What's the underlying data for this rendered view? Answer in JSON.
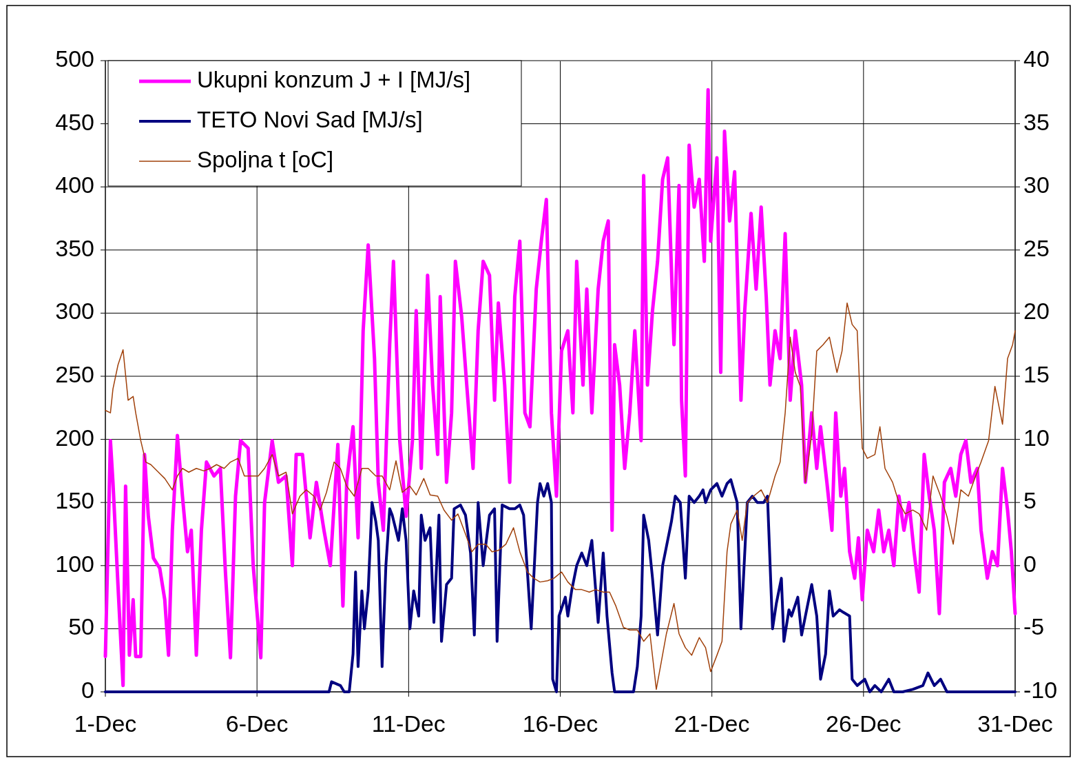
{
  "chart_data": {
    "type": "line",
    "xlim": [
      "--12-01",
      "--12-31"
    ],
    "xticks": [
      {
        "value": "--12-01",
        "label": "1-Dec"
      },
      {
        "value": "--12-06",
        "label": "6-Dec"
      },
      {
        "value": "--12-11",
        "label": "11-Dec"
      },
      {
        "value": "--12-16",
        "label": "16-Dec"
      },
      {
        "value": "--12-21",
        "label": "21-Dec"
      },
      {
        "value": "--12-26",
        "label": "26-Dec"
      },
      {
        "value": "--12-31",
        "label": "31-Dec"
      }
    ],
    "ylim": [
      0,
      500
    ],
    "yticks": [
      0,
      50,
      100,
      150,
      200,
      250,
      300,
      350,
      400,
      450,
      500
    ],
    "y2lim": [
      -10,
      40
    ],
    "y2ticks": [
      -10,
      -5,
      0,
      5,
      10,
      15,
      20,
      25,
      30,
      35,
      40
    ],
    "grid": true,
    "legend": "top left",
    "marker": "none",
    "line_style": "solid",
    "series": [
      {
        "name": "Ukupni konzum J + I [MJ/s]",
        "color": "#ff00ff",
        "x": [
          "--12-01T00:00",
          "--12-01T04:00",
          "--12-01T06:00",
          "--12-01T10:00",
          "--12-01T14:00",
          "--12-01T16:00",
          "--12-01T19:00",
          "--12-01T22:00",
          "--12-02T00:00",
          "--12-02T04:00",
          "--12-02T07:00",
          "--12-02T10:00",
          "--12-02T14:00",
          "--12-02T19:00",
          "--12-02T23:00",
          "--12-03T02:00",
          "--12-03T05:00",
          "--12-03T09:00",
          "--12-03T13:00",
          "--12-03T17:00",
          "--12-03T20:00",
          "--12-04T00:00",
          "--12-04T04:00",
          "--12-04T08:00",
          "--12-04T14:00",
          "--12-04T19:00",
          "--12-04T23:00",
          "--12-05T03:00",
          "--12-05T07:00",
          "--12-05T11:00",
          "--12-05T17:00",
          "--12-05T21:00",
          "--12-06T03:00",
          "--12-06T06:00",
          "--12-06T12:00",
          "--12-06T17:00",
          "--12-06T23:00",
          "--12-07T04:00",
          "--12-07T07:00",
          "--12-07T12:00",
          "--12-07T18:00",
          "--12-07T23:00",
          "--12-08T05:00",
          "--12-08T10:00",
          "--12-08T16:00",
          "--12-08T20:00",
          "--12-08T23:00",
          "--12-09T04:00",
          "--12-09T08:00",
          "--12-09T12:00",
          "--12-09T16:00",
          "--12-09T21:00",
          "--12-10T00:00",
          "--12-10T04:00",
          "--12-10T09:00",
          "--12-10T12:00",
          "--12-10T17:00",
          "--12-10T22:00",
          "--12-11T03:00",
          "--12-11T06:00",
          "--12-11T10:00",
          "--12-11T15:00",
          "--12-11T19:00",
          "--12-11T23:00",
          "--12-12T01:00",
          "--12-12T06:00",
          "--12-12T10:00",
          "--12-12T13:00",
          "--12-12T18:00",
          "--12-12T22:00",
          "--12-13T03:00",
          "--12-13T07:00",
          "--12-13T11:00",
          "--12-13T16:00",
          "--12-13T20:00",
          "--12-13T23:00",
          "--12-14T04:00",
          "--12-14T08:00",
          "--12-14T12:00",
          "--12-14T16:00",
          "--12-14T20:00",
          "--12-15T00:00",
          "--12-15T05:00",
          "--12-15T09:00",
          "--12-15T13:00",
          "--12-15T17:00",
          "--12-15T21:00",
          "--12-16T01:00",
          "--12-16T06:00",
          "--12-16T10:00",
          "--12-16T13:00",
          "--12-16T18:00",
          "--12-16T21:00",
          "--12-17T01:00",
          "--12-17T06:00",
          "--12-17T10:00",
          "--12-17T14:00",
          "--12-17T17:00",
          "--12-17T19:00",
          "--12-17T23:00",
          "--12-18T03:00",
          "--12-18T07:00",
          "--12-18T11:00",
          "--12-18T16:00",
          "--12-18T18:00",
          "--12-18T21:00",
          "--12-19T01:00",
          "--12-19T05:00",
          "--12-19T09:00",
          "--12-19T13:00",
          "--12-19T18:00",
          "--12-19T22:00",
          "--12-20T00:00",
          "--12-20T03:00",
          "--12-20T06:00",
          "--12-20T10:00",
          "--12-20T14:00",
          "--12-20T18:00",
          "--12-20T21:00",
          "--12-20T23:00",
          "--12-21T04:00",
          "--12-21T07:00",
          "--12-21T10:00",
          "--12-21T14:00",
          "--12-21T18:00",
          "--12-21T23:00",
          "--12-22T02:00",
          "--12-22T07:00",
          "--12-22T11:00",
          "--12-22T15:00",
          "--12-22T19:00",
          "--12-22T22:00",
          "--12-23T02:00",
          "--12-23T06:00",
          "--12-23T10:00",
          "--12-23T14:00",
          "--12-23T18:00",
          "--12-23T23:00",
          "--12-24T02:00",
          "--12-24T07:00",
          "--12-24T11:00",
          "--12-24T14:00",
          "--12-24T19:00",
          "--12-24T23:00",
          "--12-25T02:00",
          "--12-25T06:00",
          "--12-25T09:00",
          "--12-25T13:00",
          "--12-25T17:00",
          "--12-25T20:00",
          "--12-25T23:00",
          "--12-26T03:00",
          "--12-26T08:00",
          "--12-26T12:00",
          "--12-26T16:00",
          "--12-26T20:00",
          "--12-27T00:00",
          "--12-27T04:00",
          "--12-27T08:00",
          "--12-27T12:00",
          "--12-27T16:00",
          "--12-27T20:00",
          "--12-28T00:00",
          "--12-28T04:00",
          "--12-28T08:00",
          "--12-28T12:00",
          "--12-28T16:00",
          "--12-28T21:00",
          "--12-29T01:00",
          "--12-29T05:00",
          "--12-29T09:00",
          "--12-29T13:00",
          "--12-29T18:00",
          "--12-29T21:00",
          "--12-30T02:00",
          "--12-30T06:00",
          "--12-30T10:00",
          "--12-30T14:00",
          "--12-30T18:00",
          "--12-30T21:00",
          "--12-31T00:00"
        ],
        "values": [
          28,
          199,
          166,
          84,
          5,
          163,
          29,
          73,
          28,
          28,
          188,
          139,
          106,
          98,
          73,
          29,
          128,
          203,
          155,
          111,
          128,
          29,
          128,
          182,
          171,
          177,
          95,
          27,
          155,
          199,
          193,
          100,
          27,
          150,
          199,
          166,
          171,
          100,
          188,
          188,
          122,
          166,
          128,
          100,
          196,
          68,
          166,
          210,
          122,
          286,
          354,
          264,
          166,
          128,
          275,
          341,
          199,
          139,
          199,
          302,
          177,
          330,
          243,
          188,
          313,
          166,
          221,
          341,
          297,
          243,
          177,
          286,
          341,
          330,
          231,
          308,
          243,
          166,
          313,
          357,
          221,
          210,
          319,
          357,
          390,
          221,
          155,
          270,
          286,
          221,
          341,
          243,
          319,
          221,
          319,
          357,
          373,
          128,
          275,
          243,
          177,
          221,
          286,
          199,
          409,
          243,
          302,
          341,
          406,
          423,
          275,
          401,
          231,
          171,
          433,
          384,
          406,
          341,
          477,
          357,
          423,
          253,
          444,
          373,
          412,
          231,
          302,
          379,
          319,
          384,
          313,
          243,
          286,
          264,
          363,
          231,
          286,
          243,
          166,
          221,
          177,
          210,
          166,
          128,
          221,
          155,
          177,
          111,
          90,
          122,
          73,
          128,
          111,
          144,
          111,
          128,
          100,
          155,
          128,
          150,
          111,
          79,
          188,
          155,
          128,
          62,
          166,
          177,
          155,
          188,
          199,
          166,
          177,
          128,
          90,
          111,
          100,
          177,
          144,
          111,
          62
        ]
      },
      {
        "name": "TETO Novi Sad [MJ/s]",
        "color": "#000080",
        "x": [
          "--12-01T00:00",
          "--12-08T09:00",
          "--12-08T11:00",
          "--12-08T18:00",
          "--12-08T21:00",
          "--12-09T01:00",
          "--12-09T04:00",
          "--12-09T06:00",
          "--12-09T08:00",
          "--12-09T11:00",
          "--12-09T13:00",
          "--12-09T16:00",
          "--12-09T19:00",
          "--12-09T22:00",
          "--12-10T00:00",
          "--12-10T03:00",
          "--12-10T06:00",
          "--12-10T09:00",
          "--12-10T11:00",
          "--12-10T16:00",
          "--12-10T19:00",
          "--12-10T22:00",
          "--12-11T01:00",
          "--12-11T04:00",
          "--12-11T08:00",
          "--12-11T10:00",
          "--12-11T13:00",
          "--12-11T17:00",
          "--12-11T20:00",
          "--12-12T00:00",
          "--12-12T02:00",
          "--12-12T06:00",
          "--12-12T10:00",
          "--12-12T12:00",
          "--12-12T17:00",
          "--12-12T21:00",
          "--12-13T01:00",
          "--12-13T04:00",
          "--12-13T07:00",
          "--12-13T11:00",
          "--12-13T16:00",
          "--12-13T20:00",
          "--12-13T22:00",
          "--12-14T02:00",
          "--12-14T08:00",
          "--12-14T12:00",
          "--12-14T16:00",
          "--12-14T19:00",
          "--12-14T23:00",
          "--12-15T01:00",
          "--12-15T06:00",
          "--12-15T08:00",
          "--12-15T11:00",
          "--12-15T14:00",
          "--12-15T17:00",
          "--12-15T18:00",
          "--12-15T21:00",
          "--12-15T23:00",
          "--12-16T04:00",
          "--12-16T06:00",
          "--12-16T09:00",
          "--12-16T13:00",
          "--12-16T17:00",
          "--12-16T21:00",
          "--12-17T01:00",
          "--12-17T06:00",
          "--12-17T10:00",
          "--12-17T13:00",
          "--12-17T17:00",
          "--12-17T19:00",
          "--12-17T23:00",
          "--12-18T10:00",
          "--12-18T13:00",
          "--12-18T16:00",
          "--12-18T18:00",
          "--12-18T22:00",
          "--12-19T01:00",
          "--12-19T05:00",
          "--12-19T09:00",
          "--12-19T12:00",
          "--12-19T16:00",
          "--12-19T19:00",
          "--12-19T23:00",
          "--12-20T03:00",
          "--12-20T06:00",
          "--12-20T10:00",
          "--12-20T14:00",
          "--12-20T17:00",
          "--12-20T19:00",
          "--12-20T23:00",
          "--12-21T04:00",
          "--12-21T08:00",
          "--12-21T12:00",
          "--12-21T15:00",
          "--12-21T20:00",
          "--12-21T23:00",
          "--12-22T04:00",
          "--12-22T08:00",
          "--12-22T12:00",
          "--12-22T17:00",
          "--12-22T20:00",
          "--12-23T00:00",
          "--12-23T03:00",
          "--12-23T07:00",
          "--12-23T09:00",
          "--12-23T13:00",
          "--12-23T15:00",
          "--12-23T20:00",
          "--12-23T23:00",
          "--12-24T02:00",
          "--12-24T07:00",
          "--12-24T11:00",
          "--12-24T14:00",
          "--12-24T18:00",
          "--12-24T21:00",
          "--12-25T00:00",
          "--12-25T05:00",
          "--12-25T08:00",
          "--12-25T13:00",
          "--12-25T15:00",
          "--12-25T19:00",
          "--12-26T01:00",
          "--12-26T05:00",
          "--12-26T09:00",
          "--12-26T14:00",
          "--12-26T20:00",
          "--12-27T00:00",
          "--12-27T07:00",
          "--12-27T15:00",
          "--12-27T23:00",
          "--12-28T03:00",
          "--12-28T08:00",
          "--12-28T13:00",
          "--12-28T18:00",
          "--12-31T00:00"
        ],
        "values": [
          0,
          0,
          8,
          5,
          0,
          0,
          30,
          95,
          20,
          80,
          50,
          80,
          150,
          135,
          120,
          20,
          100,
          145,
          140,
          120,
          145,
          120,
          50,
          80,
          60,
          140,
          120,
          130,
          55,
          140,
          40,
          85,
          90,
          145,
          148,
          140,
          110,
          45,
          150,
          100,
          140,
          145,
          40,
          148,
          145,
          145,
          148,
          140,
          80,
          50,
          150,
          165,
          155,
          165,
          150,
          10,
          0,
          60,
          75,
          60,
          80,
          100,
          110,
          100,
          120,
          55,
          110,
          60,
          15,
          0,
          0,
          0,
          20,
          60,
          140,
          120,
          90,
          45,
          100,
          115,
          135,
          155,
          150,
          90,
          155,
          150,
          155,
          160,
          150,
          160,
          165,
          155,
          165,
          168,
          150,
          50,
          150,
          155,
          150,
          150,
          155,
          50,
          70,
          90,
          40,
          65,
          60,
          75,
          45,
          60,
          85,
          60,
          10,
          30,
          80,
          60,
          65,
          63,
          60,
          10,
          5,
          10,
          0,
          5,
          0,
          10,
          0,
          0,
          2,
          5,
          15,
          5,
          10,
          0,
          0
        ]
      },
      {
        "name": "Spoljna t [oC]",
        "color": "#a0400a",
        "axis": "y2",
        "x": [
          "--12-01T00:00",
          "--12-01T04:00",
          "--12-01T06:00",
          "--12-01T10:00",
          "--12-01T14:00",
          "--12-01T18:00",
          "--12-01T22:00",
          "--12-02T00:00",
          "--12-02T04:00",
          "--12-02T08:00",
          "--12-02T12:00",
          "--12-02T18:00",
          "--12-02T23:00",
          "--12-03T05:00",
          "--12-03T09:00",
          "--12-03T13:00",
          "--12-03T18:00",
          "--12-04T00:00",
          "--12-04T06:00",
          "--12-04T11:00",
          "--12-04T16:00",
          "--12-04T22:00",
          "--12-05T03:00",
          "--12-05T09:00",
          "--12-05T14:00",
          "--12-05T19:00",
          "--12-06T01:00",
          "--12-06T06:00",
          "--12-06T12:00",
          "--12-06T17:00",
          "--12-06T23:00",
          "--12-07T04:00",
          "--12-07T10:00",
          "--12-07T15:00",
          "--12-07T21:00",
          "--12-08T02:00",
          "--12-08T07:00",
          "--12-08T13:00",
          "--12-08T18:00",
          "--12-08T23:00",
          "--12-09T05:00",
          "--12-09T11:00",
          "--12-09T16:00",
          "--12-09T22:00",
          "--12-10T03:00",
          "--12-10T09:00",
          "--12-10T14:00",
          "--12-10T19:00",
          "--12-11T01:00",
          "--12-11T06:00",
          "--12-11T12:00",
          "--12-11T17:00",
          "--12-11T23:00",
          "--12-12T04:00",
          "--12-12T10:00",
          "--12-12T15:00",
          "--12-12T21:00",
          "--12-13T02:00",
          "--12-13T07:00",
          "--12-13T13:00",
          "--12-13T18:00",
          "--12-13T23:00",
          "--12-14T05:00",
          "--12-14T11:00",
          "--12-14T16:00",
          "--12-14T22:00",
          "--12-15T03:00",
          "--12-15T08:00",
          "--12-15T14:00",
          "--12-15T19:00",
          "--12-16T01:00",
          "--12-16T06:00",
          "--12-16T12:00",
          "--12-16T17:00",
          "--12-16T23:00",
          "--12-17T04:00",
          "--12-17T10:00",
          "--12-17T15:00",
          "--12-17T20:00",
          "--12-18T02:00",
          "--12-18T07:00",
          "--12-18T13:00",
          "--12-18T18:00",
          "--12-18T23:00",
          "--12-19T04:00",
          "--12-19T08:00",
          "--12-19T12:00",
          "--12-19T18:00",
          "--12-19T22:00",
          "--12-20T03:00",
          "--12-20T08:00",
          "--12-20T14:00",
          "--12-20T19:00",
          "--12-20T23:00",
          "--12-21T04:00",
          "--12-21T08:00",
          "--12-21T12:00",
          "--12-21T15:00",
          "--12-21T20:00",
          "--12-22T00:00",
          "--12-22T04:00",
          "--12-22T09:00",
          "--12-22T15:00",
          "--12-22T20:00",
          "--12-23T02:00",
          "--12-23T06:00",
          "--12-23T10:00",
          "--12-23T14:00",
          "--12-23T18:00",
          "--12-23T22:00",
          "--12-24T02:00",
          "--12-24T07:00",
          "--12-24T11:00",
          "--12-24T16:00",
          "--12-24T21:00",
          "--12-25T03:00",
          "--12-25T07:00",
          "--12-25T11:00",
          "--12-25T15:00",
          "--12-25T19:00",
          "--12-25T23:00",
          "--12-26T03:00",
          "--12-26T09:00",
          "--12-26T13:00",
          "--12-26T17:00",
          "--12-26T23:00",
          "--12-27T04:00",
          "--12-27T09:00",
          "--12-27T15:00",
          "--12-27T20:00",
          "--12-28T02:00",
          "--12-28T07:00",
          "--12-28T13:00",
          "--12-28T18:00",
          "--12-28T23:00",
          "--12-29T05:00",
          "--12-29T11:00",
          "--12-29T16:00",
          "--12-29T21:00",
          "--12-30T03:00",
          "--12-30T08:00",
          "--12-30T14:00",
          "--12-30T18:00",
          "--12-30T22:00",
          "--12-31T00:00"
        ],
        "values": [
          12.3,
          12.1,
          14.0,
          15.9,
          17.1,
          13.1,
          13.4,
          12.1,
          9.9,
          8.2,
          8.0,
          7.4,
          6.9,
          6.0,
          7.1,
          7.7,
          7.4,
          7.7,
          7.5,
          7.7,
          8.0,
          7.7,
          8.2,
          8.5,
          7.1,
          7.1,
          7.1,
          7.7,
          8.8,
          7.1,
          7.4,
          4.1,
          5.5,
          6.0,
          5.5,
          4.4,
          5.8,
          8.2,
          7.7,
          6.3,
          5.5,
          7.7,
          7.7,
          7.1,
          7.1,
          6.0,
          8.3,
          5.8,
          6.3,
          5.6,
          6.9,
          5.6,
          5.5,
          4.4,
          3.6,
          4.1,
          2.5,
          1.1,
          1.7,
          1.7,
          1.1,
          1.2,
          1.7,
          3.0,
          1.1,
          -0.5,
          -1.0,
          -1.3,
          -1.2,
          -1.0,
          -0.5,
          -1.3,
          -1.9,
          -1.9,
          -2.1,
          -1.9,
          -2.1,
          -2.1,
          -3.2,
          -4.9,
          -5.1,
          -5.1,
          -6.0,
          -5.4,
          -9.8,
          -7.6,
          -5.4,
          -3.0,
          -5.4,
          -6.5,
          -7.1,
          -5.7,
          -6.5,
          -8.4,
          -7.1,
          -6.0,
          1.1,
          3.3,
          4.4,
          2.0,
          5.0,
          5.5,
          6.0,
          5.0,
          7.1,
          8.2,
          12.1,
          18.1,
          15.3,
          14.2,
          6.6,
          10.4,
          17.0,
          17.5,
          18.1,
          15.3,
          17.0,
          20.8,
          19.1,
          18.6,
          9.3,
          8.5,
          8.8,
          11.0,
          7.7,
          6.6,
          5.0,
          4.1,
          4.4,
          4.1,
          2.8,
          7.1,
          5.5,
          3.9,
          1.7,
          6.0,
          5.5,
          6.9,
          8.2,
          9.9,
          14.2,
          11.2,
          16.4,
          17.5,
          18.6
        ]
      }
    ]
  }
}
